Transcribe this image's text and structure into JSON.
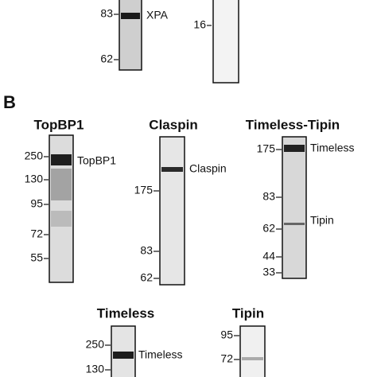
{
  "top_panel": {
    "lanes": [
      {
        "markers": [
          "83",
          "62"
        ],
        "band_labels": [
          "XPA"
        ]
      },
      {
        "markers": [
          "16"
        ]
      }
    ]
  },
  "panel_b": {
    "label": "B",
    "blots": [
      {
        "title": "TopBP1",
        "markers": [
          "250",
          "130",
          "95",
          "72",
          "55"
        ],
        "band_labels": [
          "TopBP1"
        ]
      },
      {
        "title": "Claspin",
        "markers": [
          "175",
          "83",
          "62"
        ],
        "band_labels": [
          "Claspin"
        ]
      },
      {
        "title": "Timeless-Tipin",
        "markers": [
          "175",
          "83",
          "62",
          "44",
          "33"
        ],
        "band_labels": [
          "Timeless",
          "Tipin"
        ]
      },
      {
        "title": "Timeless",
        "markers": [
          "250",
          "130"
        ],
        "band_labels": [
          "Timeless"
        ]
      },
      {
        "title": "Tipin",
        "markers": [
          "95",
          "72"
        ]
      }
    ]
  }
}
